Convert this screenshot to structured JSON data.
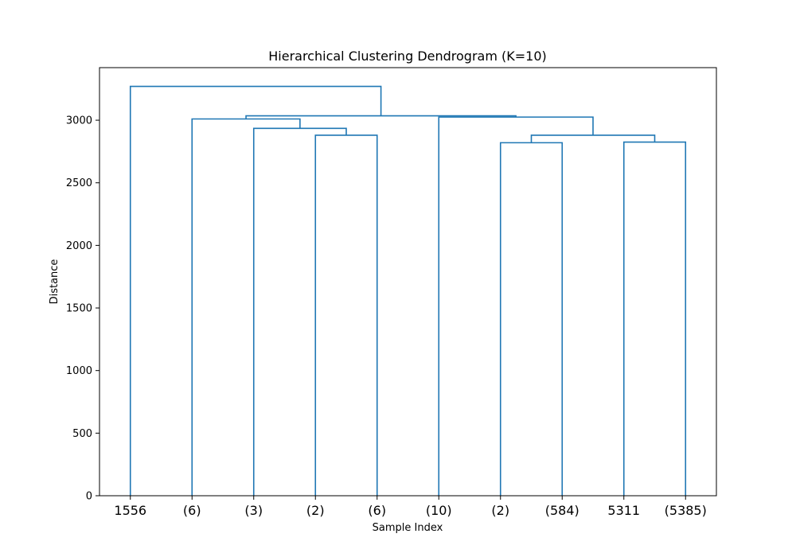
{
  "chart_data": {
    "type": "dendrogram",
    "title": "Hierarchical Clustering Dendrogram (K=10)",
    "xlabel": "Sample Index",
    "ylabel": "Distance",
    "ylim": [
      0,
      3420
    ],
    "yticks": [
      0,
      500,
      1000,
      1500,
      2000,
      2500,
      3000
    ],
    "line_color": "#1f77b4",
    "grid": false,
    "leaves": [
      "1556",
      "(6)",
      "(3)",
      "(2)",
      "(6)",
      "(10)",
      "(2)",
      "(584)",
      "5311",
      "(5385)"
    ],
    "merges": [
      {
        "left": 3,
        "right": 4,
        "height": 2880
      },
      {
        "left": 2,
        "right": 10,
        "height": 2935
      },
      {
        "left": 1,
        "right": 11,
        "height": 3010
      },
      {
        "left": 6,
        "right": 7,
        "height": 2820
      },
      {
        "left": 8,
        "right": 9,
        "height": 2825
      },
      {
        "left": 13,
        "right": 14,
        "height": 2880
      },
      {
        "left": 5,
        "right": 15,
        "height": 3025
      },
      {
        "left": 12,
        "right": 16,
        "height": 3035
      },
      {
        "left": 0,
        "right": 17,
        "height": 3270
      }
    ]
  }
}
